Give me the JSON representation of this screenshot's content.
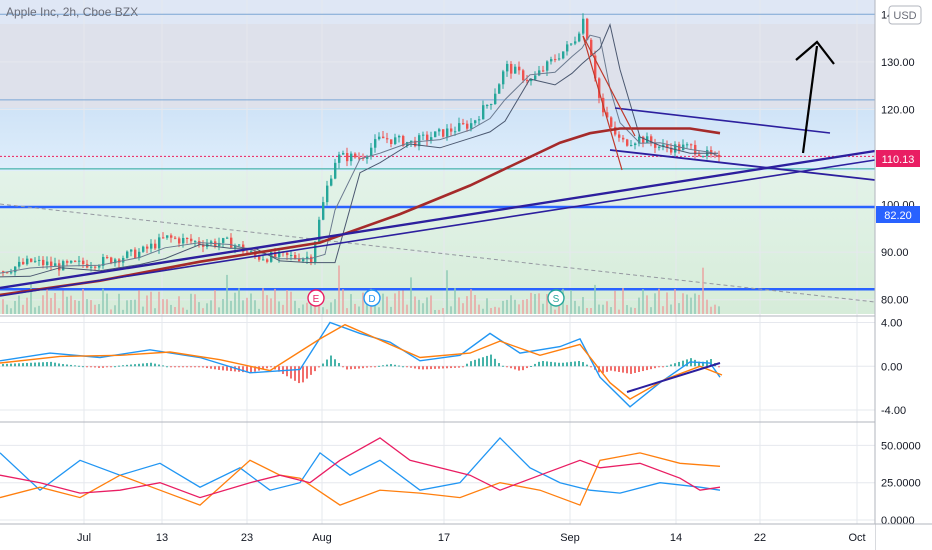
{
  "header": {
    "symbol_title": "Apple Inc, 2h, Cboe BZX",
    "currency": "USD"
  },
  "price_badges": {
    "last": "110.13",
    "level": "82.20"
  },
  "colors": {
    "last_badge": "#e91e63",
    "level_badge": "#2962ff",
    "up_candle": "#26a69a",
    "down_candle": "#ef5350",
    "ma_long": "#a52a2a",
    "trend_line": "#2c1f9e",
    "macd_line": "#2196f3",
    "signal_line": "#ff7f0e",
    "stoch_blue": "#2196f3",
    "stoch_orange": "#ff7f0e",
    "stoch_pink": "#e91e63"
  },
  "x_axis": {
    "ticks": [
      "Jul",
      "13",
      "23",
      "Aug",
      "17",
      "Sep",
      "14",
      "22",
      "Oct"
    ]
  },
  "events": [
    "E",
    "D",
    "S"
  ],
  "chart_data": [
    {
      "type": "line",
      "panel": "price",
      "y_ticks": [
        "140.00",
        "130.00",
        "120.00",
        "110.00",
        "100.00",
        "90.00",
        "80.00"
      ],
      "ylim": [
        77,
        143
      ],
      "series": [
        {
          "name": "",
          "values": [
            [
              0,
              86
            ],
            [
              30,
              88
            ],
            [
              60,
              87
            ],
            [
              100,
              88
            ],
            [
              140,
              90
            ],
            [
              165,
              93
            ],
            [
              200,
              92
            ],
            [
              230,
              92
            ],
            [
              255,
              89
            ],
            [
              280,
              89
            ],
            [
              310,
              89
            ],
            [
              325,
              103
            ],
            [
              335,
              110
            ],
            [
              360,
              110
            ],
            [
              380,
              114
            ],
            [
              410,
              113
            ],
            [
              440,
              115
            ],
            [
              470,
              117
            ],
            [
              490,
              122
            ],
            [
              505,
              129
            ],
            [
              530,
              126
            ],
            [
              555,
              131
            ],
            [
              572,
              134
            ],
            [
              582,
              139
            ],
            [
              590,
              132
            ],
            [
              600,
              120
            ],
            [
              610,
              116
            ],
            [
              620,
              113
            ],
            [
              640,
              114
            ],
            [
              660,
              112
            ],
            [
              690,
              112
            ],
            [
              710,
              110
            ],
            [
              718,
              109
            ]
          ]
        },
        {
          "name": "",
          "values": [
            [
              0,
              81
            ],
            [
              100,
              84
            ],
            [
              200,
              88
            ],
            [
              260,
              90
            ],
            [
              320,
              92
            ],
            [
              400,
              98
            ],
            [
              470,
              104
            ],
            [
              510,
              108
            ],
            [
              560,
              113
            ],
            [
              590,
              115
            ],
            [
              620,
              116
            ],
            [
              660,
              116
            ],
            [
              690,
              116
            ],
            [
              720,
              115
            ]
          ]
        }
      ],
      "horizontal_levels": [
        140,
        122,
        110.13,
        107.5,
        99.5,
        82.2
      ],
      "annotations": [
        "arrow-up"
      ]
    },
    {
      "type": "bar",
      "panel": "macd",
      "y_ticks": [
        "4.00",
        "0.00",
        "-4.00"
      ],
      "ylim": [
        -5,
        4.5
      ],
      "series": [
        {
          "name": "",
          "values": [
            [
              0,
              0.5
            ],
            [
              50,
              1.2
            ],
            [
              100,
              0.8
            ],
            [
              150,
              1.5
            ],
            [
              200,
              0.8
            ],
            [
              250,
              -0.6
            ],
            [
              300,
              -0.3
            ],
            [
              330,
              4.0
            ],
            [
              360,
              3.0
            ],
            [
              390,
              2.2
            ],
            [
              420,
              0.5
            ],
            [
              460,
              1.0
            ],
            [
              490,
              3.0
            ],
            [
              520,
              1.2
            ],
            [
              560,
              1.8
            ],
            [
              580,
              2.5
            ],
            [
              600,
              -1.0
            ],
            [
              630,
              -3.7
            ],
            [
              660,
              -1.5
            ],
            [
              690,
              0.4
            ],
            [
              710,
              0.3
            ],
            [
              720,
              -1.0
            ]
          ]
        },
        {
          "name": "",
          "values": [
            [
              0,
              0.3
            ],
            [
              60,
              0.9
            ],
            [
              120,
              1.0
            ],
            [
              170,
              1.3
            ],
            [
              220,
              0.6
            ],
            [
              270,
              -0.4
            ],
            [
              320,
              2.5
            ],
            [
              345,
              3.8
            ],
            [
              380,
              2.4
            ],
            [
              420,
              0.8
            ],
            [
              470,
              1.2
            ],
            [
              500,
              2.3
            ],
            [
              540,
              1.0
            ],
            [
              580,
              2.0
            ],
            [
              610,
              -1.5
            ],
            [
              630,
              -3.0
            ],
            [
              665,
              -1.2
            ],
            [
              700,
              0.0
            ],
            [
              722,
              -0.8
            ]
          ]
        }
      ]
    },
    {
      "type": "line",
      "panel": "oscillator",
      "y_ticks": [
        "50.0000",
        "25.0000",
        "0.0000"
      ],
      "ylim": [
        -2,
        65
      ],
      "series": [
        {
          "name": "",
          "values": [
            [
              0,
              45
            ],
            [
              40,
              20
            ],
            [
              80,
              40
            ],
            [
              120,
              30
            ],
            [
              160,
              38
            ],
            [
              200,
              22
            ],
            [
              240,
              35
            ],
            [
              270,
              20
            ],
            [
              300,
              25
            ],
            [
              320,
              45
            ],
            [
              350,
              30
            ],
            [
              380,
              40
            ],
            [
              420,
              20
            ],
            [
              460,
              25
            ],
            [
              500,
              55
            ],
            [
              530,
              35
            ],
            [
              560,
              25
            ],
            [
              590,
              20
            ],
            [
              620,
              18
            ],
            [
              660,
              25
            ],
            [
              700,
              22
            ],
            [
              720,
              20
            ]
          ]
        },
        {
          "name": "",
          "values": [
            [
              0,
              15
            ],
            [
              40,
              22
            ],
            [
              80,
              15
            ],
            [
              120,
              30
            ],
            [
              160,
              20
            ],
            [
              200,
              10
            ],
            [
              250,
              40
            ],
            [
              280,
              30
            ],
            [
              300,
              28
            ],
            [
              340,
              10
            ],
            [
              380,
              20
            ],
            [
              420,
              18
            ],
            [
              460,
              15
            ],
            [
              500,
              25
            ],
            [
              540,
              20
            ],
            [
              580,
              10
            ],
            [
              600,
              40
            ],
            [
              640,
              45
            ],
            [
              680,
              38
            ],
            [
              720,
              36
            ]
          ]
        },
        {
          "name": "",
          "values": [
            [
              0,
              30
            ],
            [
              40,
              25
            ],
            [
              80,
              18
            ],
            [
              120,
              20
            ],
            [
              160,
              25
            ],
            [
              200,
              15
            ],
            [
              250,
              25
            ],
            [
              280,
              30
            ],
            [
              310,
              25
            ],
            [
              340,
              40
            ],
            [
              380,
              55
            ],
            [
              410,
              40
            ],
            [
              440,
              35
            ],
            [
              470,
              30
            ],
            [
              500,
              20
            ],
            [
              540,
              30
            ],
            [
              580,
              40
            ],
            [
              600,
              35
            ],
            [
              640,
              38
            ],
            [
              680,
              28
            ],
            [
              700,
              20
            ],
            [
              720,
              22
            ]
          ]
        }
      ]
    }
  ]
}
